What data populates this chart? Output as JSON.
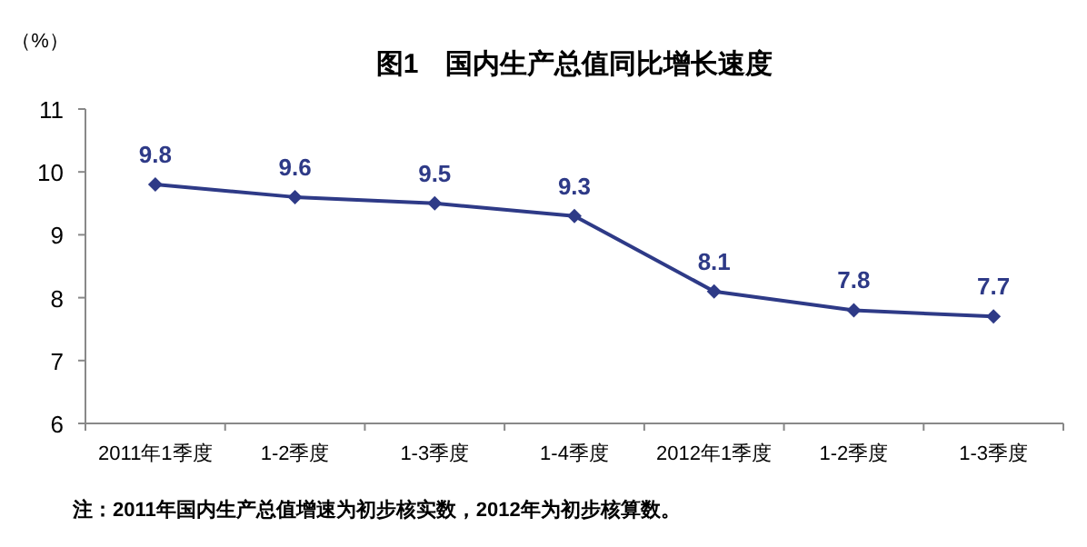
{
  "chart_data": {
    "type": "line",
    "title": "图1　国内生产总值同比增长速度",
    "ylabel": "（%）",
    "categories": [
      "2011年1季度",
      "1-2季度",
      "1-3季度",
      "1-4季度",
      "2012年1季度",
      "1-2季度",
      "1-3季度"
    ],
    "series": [
      {
        "color": "#2e3a87",
        "values": [
          9.8,
          9.6,
          9.5,
          9.3,
          8.1,
          7.8,
          7.7
        ]
      }
    ],
    "ylim": [
      6,
      11
    ],
    "yticks": [
      6,
      7,
      8,
      9,
      10,
      11
    ],
    "marker": "diamond",
    "line_style": "solid",
    "data_labels": true,
    "annotations": [
      "注：2011年国内生产总值增速为初步核实数，2012年为初步核算数。"
    ]
  }
}
